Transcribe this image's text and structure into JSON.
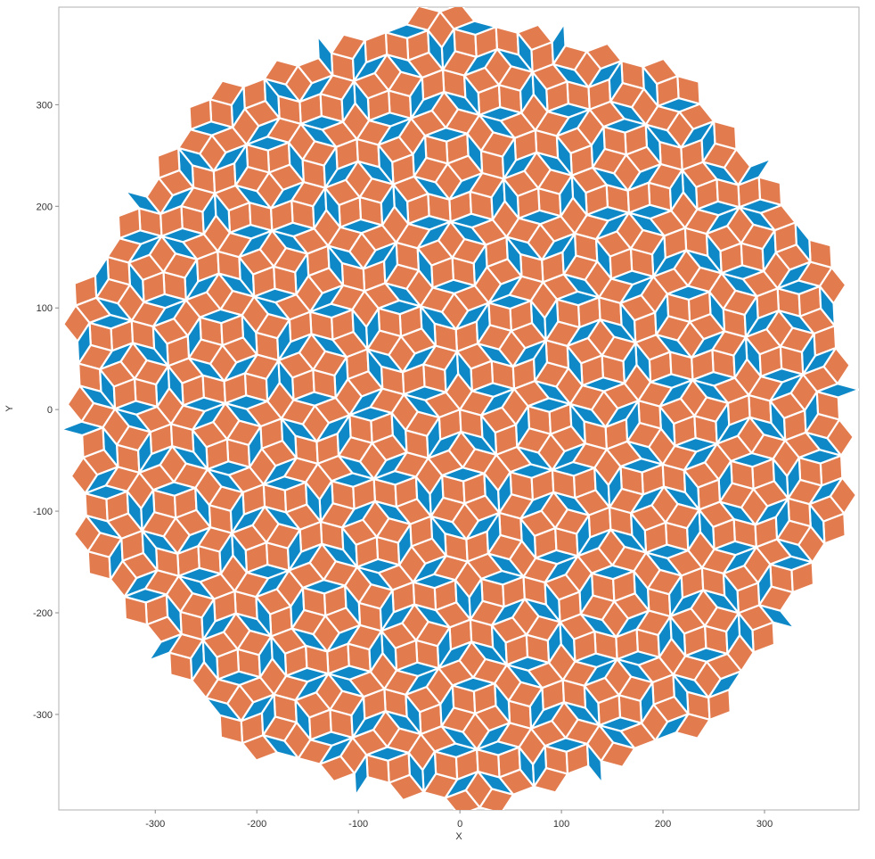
{
  "chart_data": {
    "type": "penrose",
    "xlabel": "X",
    "ylabel": "Y",
    "xlim": [
      -395,
      393
    ],
    "ylim": [
      -394,
      396
    ],
    "xticks": [
      -300,
      -200,
      -100,
      0,
      100,
      200,
      300
    ],
    "yticks": [
      -300,
      -200,
      -100,
      0,
      100,
      200,
      300
    ],
    "thick_color": "#e27b4e",
    "thin_color": "#0e88c7"
  }
}
